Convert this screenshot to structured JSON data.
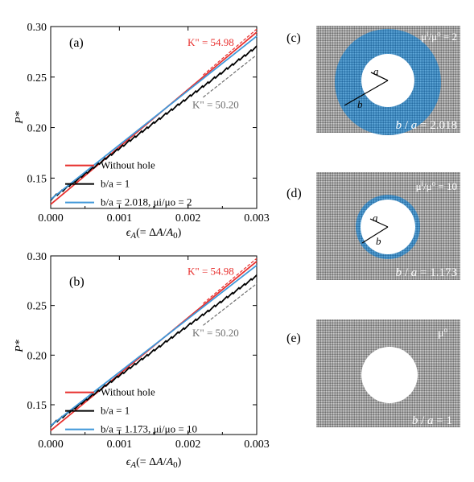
{
  "figure": {
    "colors": {
      "without_hole": "#e8302e",
      "b_over_a_1": "#000000",
      "hole_with_shell": "#3f97d9",
      "grid_gray": "#8c8c8c",
      "shell_blue": "#3d86b8",
      "annotation_red": "#e8302e",
      "annotation_gray": "#6e6e6e"
    }
  },
  "chart_data": [
    {
      "panel": "(a)",
      "type": "line",
      "xlabel": "ϵA(= ΔA/A0)",
      "ylabel": "P*",
      "xlim": [
        0.0,
        0.003
      ],
      "ylim": [
        0.12,
        0.3
      ],
      "xticks": [
        "0.000",
        "0.001",
        "0.002",
        "0.003"
      ],
      "yticks": [
        "0.15",
        "0.20",
        "0.25",
        "0.30"
      ],
      "legend_position": "bottom-right",
      "series": [
        {
          "name": "Without hole",
          "x": [
            0.0,
            0.003
          ],
          "y": [
            0.124,
            0.2945
          ]
        },
        {
          "name": "b/a = 1",
          "x": [
            0.0,
            0.003
          ],
          "y": [
            0.129,
            0.28
          ],
          "noisy": true
        },
        {
          "name": "b/a = 2.018,  μi/μo = 2",
          "x": [
            0.0,
            0.003
          ],
          "y": [
            0.129,
            0.2905
          ]
        }
      ],
      "annotations": [
        {
          "text": "K\" = 54.98",
          "color": "red",
          "slope_line": {
            "x": [
              0.00222,
              0.003
            ],
            "y": [
              0.252,
              0.2975
            ]
          }
        },
        {
          "text": "K\" = 50.20",
          "color": "gray",
          "slope_line": {
            "x": [
              0.00222,
              0.003
            ],
            "y": [
              0.23,
              0.272
            ]
          }
        }
      ]
    },
    {
      "panel": "(b)",
      "type": "line",
      "xlabel": "ϵA(= ΔA/A0)",
      "ylabel": "P*",
      "xlim": [
        0.0,
        0.003
      ],
      "ylim": [
        0.12,
        0.3
      ],
      "xticks": [
        "0.000",
        "0.001",
        "0.002",
        "0.003"
      ],
      "yticks": [
        "0.15",
        "0.20",
        "0.25",
        "0.30"
      ],
      "legend_position": "bottom-right",
      "series": [
        {
          "name": "Without hole",
          "x": [
            0.0,
            0.003
          ],
          "y": [
            0.124,
            0.2945
          ]
        },
        {
          "name": "b/a = 1",
          "x": [
            0.0,
            0.003
          ],
          "y": [
            0.129,
            0.28
          ],
          "noisy": true
        },
        {
          "name": "b/a = 1.173,  μi/μo = 10",
          "x": [
            0.0,
            0.003
          ],
          "y": [
            0.129,
            0.2905
          ]
        }
      ],
      "annotations": [
        {
          "text": "K\" = 54.98",
          "color": "red",
          "slope_line": {
            "x": [
              0.00222,
              0.003
            ],
            "y": [
              0.252,
              0.2975
            ]
          }
        },
        {
          "text": "K\" = 50.20",
          "color": "gray",
          "slope_line": {
            "x": [
              0.00222,
              0.003
            ],
            "y": [
              0.23,
              0.272
            ]
          }
        }
      ]
    }
  ],
  "schematics": [
    {
      "panel": "(c)",
      "ratio_label": "μi/μo = 2",
      "inner_label": "a",
      "outer_label": "b",
      "caption": "b / a = 2.018",
      "shell": true
    },
    {
      "panel": "(d)",
      "ratio_label": "μi/μo = 10",
      "inner_label": "a",
      "outer_label": "b",
      "caption": "b / a = 1.173",
      "shell": true
    },
    {
      "panel": "(e)",
      "ratio_label": "μo",
      "caption": "b / a = 1",
      "shell": false
    }
  ]
}
